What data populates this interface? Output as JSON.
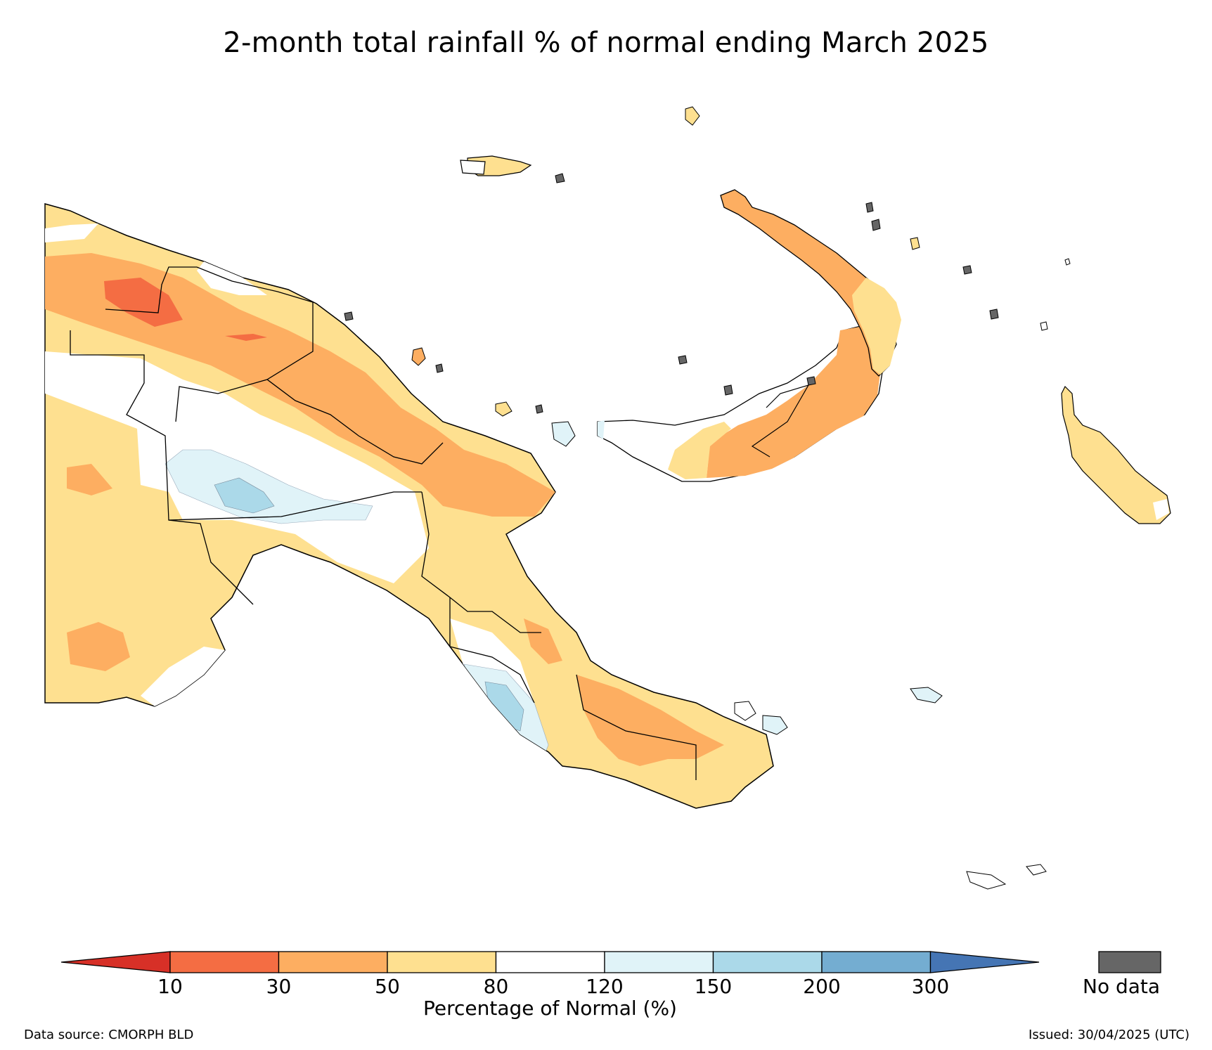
{
  "title": "2-month total rainfall % of normal ending March 2025",
  "colorbar": {
    "label": "Percentage of Normal (%)",
    "ticks": [
      "10",
      "30",
      "50",
      "80",
      "120",
      "150",
      "200",
      "300"
    ],
    "bins": [
      {
        "range": "<10",
        "color": "#d73027"
      },
      {
        "range": "10-30",
        "color": "#f46d43"
      },
      {
        "range": "30-50",
        "color": "#fdae61"
      },
      {
        "range": "50-80",
        "color": "#fee090"
      },
      {
        "range": "80-120",
        "color": "#ffffff"
      },
      {
        "range": "120-150",
        "color": "#e0f3f8"
      },
      {
        "range": "150-200",
        "color": "#abd9e9"
      },
      {
        "range": "200-300",
        "color": "#74add1"
      },
      {
        "range": ">300",
        "color": "#4575b4"
      }
    ]
  },
  "no_data": {
    "label": "No data",
    "color": "#666666"
  },
  "footer": {
    "source": "Data source: CMORPH BLD",
    "issued": "Issued: 30/04/2025 (UTC)"
  }
}
